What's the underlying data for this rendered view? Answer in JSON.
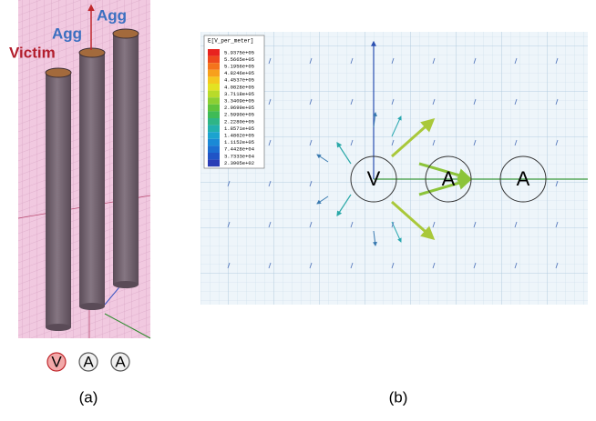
{
  "panel_a": {
    "labels": {
      "agg_top": "Agg",
      "agg_mid": "Agg",
      "victim": "Victim"
    },
    "symbols": [
      "V",
      "A",
      "A"
    ],
    "caption": "(a)"
  },
  "panel_b": {
    "legend": {
      "title": "E[V_per_meter]",
      "items": [
        {
          "label": "5.9375e+05",
          "color": "#e8231f"
        },
        {
          "label": "5.5665e+05",
          "color": "#ee4a1d"
        },
        {
          "label": "5.1956e+05",
          "color": "#f4741c"
        },
        {
          "label": "4.8246e+05",
          "color": "#f7a01c"
        },
        {
          "label": "4.4537e+05",
          "color": "#f4c81f"
        },
        {
          "label": "4.0828e+05",
          "color": "#e3e222"
        },
        {
          "label": "3.7118e+05",
          "color": "#b8db2a"
        },
        {
          "label": "3.3409e+05",
          "color": "#8ccf32"
        },
        {
          "label": "2.9699e+05",
          "color": "#5fc33b"
        },
        {
          "label": "2.5990e+05",
          "color": "#3fbb56"
        },
        {
          "label": "2.2280e+05",
          "color": "#2eb586"
        },
        {
          "label": "1.8571e+05",
          "color": "#22b0ae"
        },
        {
          "label": "1.4862e+05",
          "color": "#1ba3cf"
        },
        {
          "label": "1.1152e+05",
          "color": "#1a89d6"
        },
        {
          "label": "7.4428e+04",
          "color": "#1c6ed1"
        },
        {
          "label": "3.7333e+04",
          "color": "#2054c6"
        },
        {
          "label": "2.3905e+02",
          "color": "#2a3db6"
        }
      ]
    },
    "conductors": [
      "V",
      "A",
      "A"
    ],
    "caption": "(b)"
  }
}
